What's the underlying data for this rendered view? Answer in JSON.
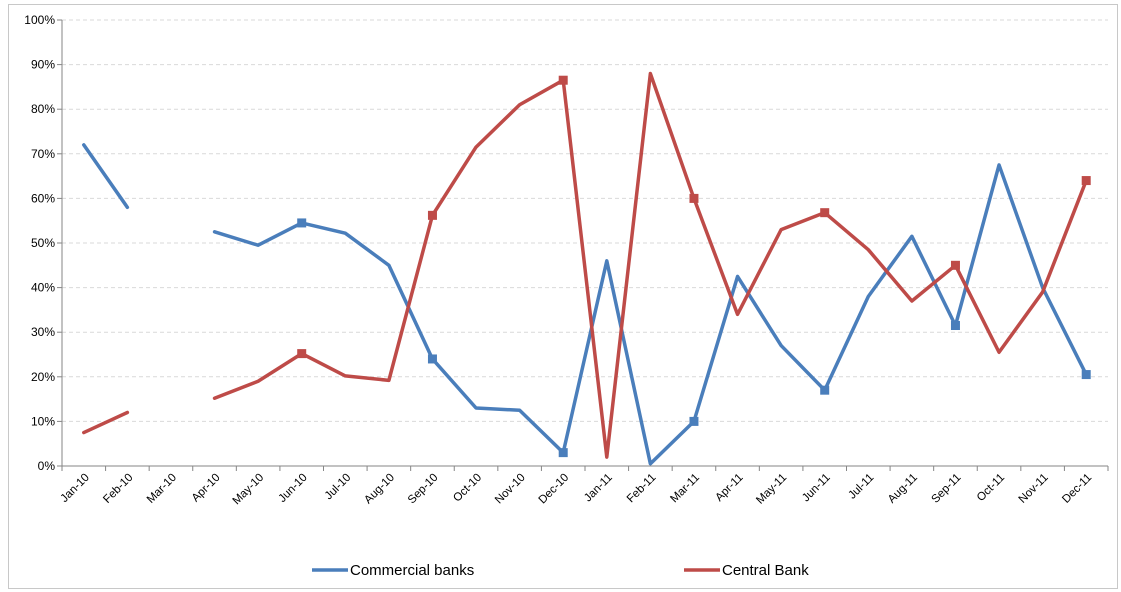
{
  "chart_data": {
    "type": "line",
    "title": "",
    "xlabel": "",
    "ylabel": "",
    "ylim": [
      0,
      100
    ],
    "y_ticks": [
      "0%",
      "10%",
      "20%",
      "30%",
      "40%",
      "50%",
      "60%",
      "70%",
      "80%",
      "90%",
      "100%"
    ],
    "grid": "horizontal dashed",
    "legend_position": "bottom",
    "categories": [
      "Jan-10",
      "Feb-10",
      "Mar-10",
      "Apr-10",
      "May-10",
      "Jun-10",
      "Jul-10",
      "Aug-10",
      "Sep-10",
      "Oct-10",
      "Nov-10",
      "Dec-10",
      "Jan-11",
      "Feb-11",
      "Mar-11",
      "Apr-11",
      "May-11",
      "Jun-11",
      "Jul-11",
      "Aug-11",
      "Sep-11",
      "Oct-11",
      "Nov-11",
      "Dec-11"
    ],
    "series": [
      {
        "name": "Commercial banks",
        "color": "#4a7ebb",
        "values": [
          72,
          58,
          null,
          52.5,
          49.5,
          54.5,
          52.2,
          45,
          24,
          13,
          12.5,
          3,
          46,
          0.5,
          10,
          42.5,
          27,
          17,
          38,
          51.5,
          31.5,
          67.5,
          40,
          20.5
        ],
        "markers": [
          5,
          8,
          11,
          14,
          17,
          20,
          23
        ]
      },
      {
        "name": "Central Bank",
        "color": "#be4b48",
        "values": [
          7.5,
          12,
          null,
          15.2,
          19,
          25.2,
          20.2,
          19.2,
          56.2,
          71.5,
          81,
          86.5,
          2,
          88,
          60,
          34,
          53,
          56.8,
          48.5,
          37,
          45,
          25.5,
          39,
          64
        ],
        "markers": [
          5,
          8,
          11,
          14,
          17,
          20,
          23
        ]
      }
    ]
  }
}
